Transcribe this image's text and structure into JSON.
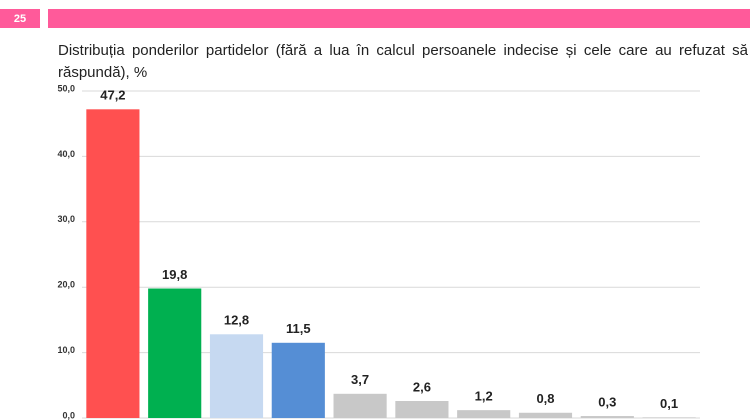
{
  "slide_number": "25",
  "chart_data": {
    "type": "bar",
    "title": "Distribuția ponderilor partidelor (fără a lua în calcul persoanele indecise și cele care au refuzat să răspundă), %",
    "categories": [
      null,
      null,
      null,
      null,
      null,
      null,
      null,
      null,
      null,
      null
    ],
    "values": [
      47.2,
      19.8,
      12.8,
      11.5,
      3.7,
      2.6,
      1.2,
      0.8,
      0.3,
      0.1
    ],
    "value_labels": [
      "47,2",
      "19,8",
      "12,8",
      "11,5",
      "3,7",
      "2,6",
      "1,2",
      "0,8",
      "0,3",
      "0,1"
    ],
    "colors": [
      "#ff5050",
      "#00b050",
      "#c6d9f1",
      "#558ed5",
      "#c8c8c8",
      "#c8c8c8",
      "#c8c8c8",
      "#c8c8c8",
      "#c8c8c8",
      "#c8c8c8"
    ],
    "ylim": [
      0,
      50
    ],
    "yticks": [
      {
        "value": 0,
        "label": "0,0"
      },
      {
        "value": 10,
        "label": "10,0"
      },
      {
        "value": 20,
        "label": "20,0"
      },
      {
        "value": 30,
        "label": "30,0"
      },
      {
        "value": 40,
        "label": "40,0"
      },
      {
        "value": 50,
        "label": "50,0"
      }
    ],
    "grid": true
  }
}
